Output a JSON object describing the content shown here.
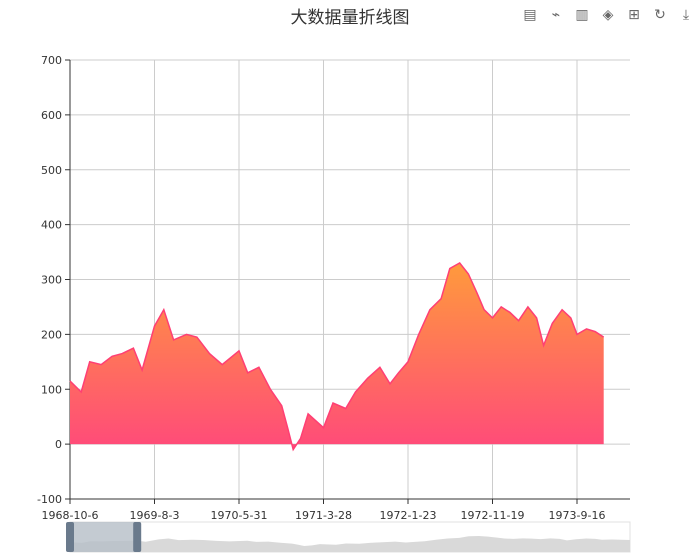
{
  "title": "大数据量折线图",
  "toolbox": {
    "items": [
      {
        "name": "data-view-icon",
        "glyph": "▤"
      },
      {
        "name": "line-chart-icon",
        "glyph": "⌁"
      },
      {
        "name": "bar-chart-icon",
        "glyph": "▥"
      },
      {
        "name": "stack-icon",
        "glyph": "◈"
      },
      {
        "name": "tiled-icon",
        "glyph": "⊞"
      },
      {
        "name": "restore-icon",
        "glyph": "↻"
      },
      {
        "name": "save-image-icon",
        "glyph": "⤓"
      }
    ]
  },
  "colors": {
    "line": "#ff3f74",
    "area_top": "#ff9a3c",
    "area_bottom": "#ff4a7a",
    "grid": "#cccccc",
    "axis": "#333333",
    "slider_fill": "#b5bec7",
    "slider_handle": "#6a7a8c",
    "slider_shadow": "#d9d9d9"
  },
  "chart_data": {
    "type": "area",
    "title": "大数据量折线图",
    "xlabel": "",
    "ylabel": "",
    "ylim": [
      -100,
      700
    ],
    "y_ticks": [
      "700",
      "600",
      "500",
      "400",
      "300",
      "200",
      "100",
      "0",
      "-100"
    ],
    "x_ticks": [
      "1968-10-6",
      "1969-8-3",
      "1970-5-31",
      "1971-3-28",
      "1972-1-23",
      "1972-11-19",
      "1973-9-16"
    ],
    "grid": true,
    "dataZoom": {
      "start_fraction": 0.0,
      "end_fraction": 0.12
    },
    "series": [
      {
        "x": [
          "1968-10-6",
          "1968-11-15",
          "1968-12-15",
          "1969-1-25",
          "1969-3-5",
          "1969-4-10",
          "1969-5-20",
          "1969-6-20",
          "1969-8-3",
          "1969-9-5",
          "1969-10-10",
          "1969-11-25",
          "1970-1-1",
          "1970-2-15",
          "1970-4-1",
          "1970-5-31",
          "1970-7-1",
          "1970-8-10",
          "1970-9-20",
          "1970-10-30",
          "1970-11-20",
          "1970-12-10",
          "1971-1-5",
          "1971-2-1",
          "1971-3-28",
          "1971-5-1",
          "1971-6-15",
          "1971-7-20",
          "1971-9-1",
          "1971-10-15",
          "1971-11-20",
          "1971-12-20",
          "1972-1-23",
          "1972-3-1",
          "1972-4-10",
          "1972-5-20",
          "1972-6-20",
          "1972-7-25",
          "1972-8-25",
          "1972-9-25",
          "1972-10-20",
          "1972-11-19",
          "1972-12-20",
          "1973-1-20",
          "1973-2-20",
          "1973-3-25",
          "1973-4-25",
          "1973-5-20",
          "1973-6-20",
          "1973-7-25",
          "1973-8-25",
          "1973-9-16",
          "1973-10-20",
          "1973-11-20",
          "1973-12-20"
        ],
        "values": [
          115,
          95,
          150,
          145,
          160,
          165,
          175,
          135,
          215,
          245,
          190,
          200,
          195,
          165,
          145,
          170,
          130,
          140,
          100,
          70,
          30,
          -10,
          10,
          55,
          30,
          75,
          65,
          95,
          120,
          140,
          110,
          130,
          150,
          200,
          245,
          265,
          320,
          330,
          310,
          275,
          245,
          230,
          250,
          240,
          225,
          250,
          230,
          180,
          220,
          245,
          230,
          200,
          210,
          205,
          195
        ]
      }
    ]
  }
}
